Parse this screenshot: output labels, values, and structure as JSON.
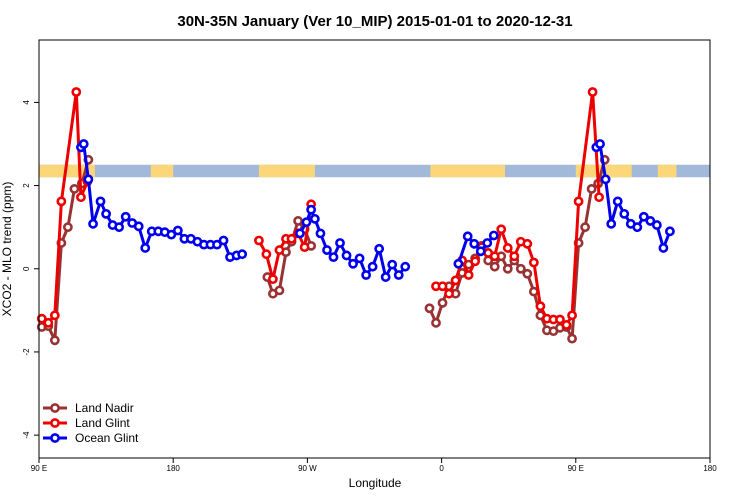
{
  "chart_data": {
    "type": "line",
    "title": "30N-35N January (Ver 10_MIP)   2015-01-01 to 2020-12-31",
    "xlabel": "Longitude",
    "ylabel": "XCO2 - MLO trend (ppm)",
    "xlim": [
      -90,
      270
    ],
    "ylim": [
      -4.55,
      5.5
    ],
    "x_ticks": [
      {
        "value": -90,
        "label": "90 E"
      },
      {
        "value": -18,
        "label": "180"
      },
      {
        "value": 54,
        "label": "90 W"
      },
      {
        "value": 126,
        "label": "0"
      },
      {
        "value": 198,
        "label": "90 E"
      },
      {
        "value": 270,
        "label": "180"
      }
    ],
    "y_ticks": [
      {
        "value": -4,
        "label": "-4"
      },
      {
        "value": -2,
        "label": "-2"
      },
      {
        "value": 0,
        "label": "0"
      },
      {
        "value": 2,
        "label": "2"
      },
      {
        "value": 4,
        "label": "4"
      }
    ],
    "grid": false,
    "legend_position": "bottom-left",
    "land_ocean_band": {
      "y_range": [
        2.2,
        2.5
      ],
      "land_color": "#FCD77A",
      "ocean_color": "#A3B9DA",
      "land_segments": [
        [
          -90,
          -60
        ],
        [
          -30,
          -18
        ],
        [
          28,
          58
        ],
        [
          120,
          160
        ],
        [
          198,
          228
        ],
        [
          242,
          252
        ]
      ]
    },
    "series": [
      {
        "name": "Land Nadir",
        "color": "#993333",
        "points": [
          [
            -88.5,
            -1.4
          ],
          [
            -85,
            -1.38
          ],
          [
            -81.5,
            -1.72
          ],
          [
            -78,
            0.62
          ],
          [
            -74.5,
            1.0
          ],
          [
            -71,
            1.92
          ],
          [
            -67,
            2.05
          ],
          [
            -63.5,
            2.62
          ],
          [
            32.5,
            -0.2
          ],
          [
            35.5,
            -0.6
          ],
          [
            39,
            -0.52
          ],
          [
            42.5,
            0.4
          ],
          [
            45.5,
            0.65
          ],
          [
            49,
            1.15
          ],
          [
            52.5,
            0.95
          ],
          [
            56,
            0.55
          ],
          [
            119.5,
            -0.95
          ],
          [
            123,
            -1.3
          ],
          [
            126.5,
            -0.82
          ],
          [
            130,
            -0.42
          ],
          [
            133.5,
            -0.6
          ],
          [
            137,
            -0.1
          ],
          [
            140.5,
            0.1
          ],
          [
            144,
            0.25
          ],
          [
            147.5,
            0.55
          ],
          [
            151,
            0.2
          ],
          [
            154.5,
            0.05
          ],
          [
            158,
            0.3
          ],
          [
            161.5,
            0.0
          ],
          [
            165,
            0.2
          ],
          [
            168.5,
            0.0
          ],
          [
            172,
            -0.12
          ],
          [
            175.5,
            -0.55
          ],
          [
            179,
            -1.12
          ],
          [
            182.5,
            -1.48
          ],
          [
            186,
            -1.5
          ],
          [
            189.5,
            -1.42
          ],
          [
            193,
            -1.4
          ],
          [
            196,
            -1.68
          ],
          [
            199.5,
            0.62
          ],
          [
            203,
            1.0
          ],
          [
            206.5,
            1.92
          ],
          [
            210,
            2.05
          ],
          [
            213.5,
            2.62
          ]
        ]
      },
      {
        "name": "Land Glint",
        "color": "#EE0000",
        "points": [
          [
            -88.5,
            -1.2
          ],
          [
            -85,
            -1.3
          ],
          [
            -81.5,
            -1.12
          ],
          [
            -78,
            1.62
          ],
          [
            -70,
            4.25
          ],
          [
            -67.5,
            1.72
          ],
          [
            -64,
            2.1
          ],
          [
            28,
            0.68
          ],
          [
            32,
            0.35
          ],
          [
            35.5,
            -0.25
          ],
          [
            39,
            0.45
          ],
          [
            42.5,
            0.72
          ],
          [
            45.5,
            0.72
          ],
          [
            49,
            0.85
          ],
          [
            52.5,
            0.52
          ],
          [
            56,
            1.55
          ],
          [
            123,
            -0.42
          ],
          [
            126.5,
            -0.42
          ],
          [
            130,
            -0.6
          ],
          [
            133.5,
            -0.28
          ],
          [
            137,
            0.2
          ],
          [
            140.5,
            -0.15
          ],
          [
            144,
            0.18
          ],
          [
            147.5,
            0.52
          ],
          [
            151,
            0.38
          ],
          [
            154.5,
            0.3
          ],
          [
            158,
            0.95
          ],
          [
            161.5,
            0.5
          ],
          [
            165,
            0.3
          ],
          [
            168.5,
            0.65
          ],
          [
            172,
            0.6
          ],
          [
            175.5,
            0.15
          ],
          [
            179,
            -0.9
          ],
          [
            182.5,
            -1.2
          ],
          [
            186,
            -1.22
          ],
          [
            189.5,
            -1.22
          ],
          [
            193,
            -1.35
          ],
          [
            196,
            -1.12
          ],
          [
            199.5,
            1.62
          ],
          [
            207,
            4.25
          ],
          [
            210.5,
            1.72
          ]
        ]
      },
      {
        "name": "Ocean Glint",
        "color": "#0000EE",
        "points": [
          [
            -67.5,
            2.92
          ],
          [
            -66,
            3.0
          ],
          [
            -63.5,
            2.15
          ],
          [
            -61,
            1.08
          ],
          [
            -57,
            1.62
          ],
          [
            -54,
            1.32
          ],
          [
            -50.5,
            1.05
          ],
          [
            -47,
            1.0
          ],
          [
            -43.5,
            1.25
          ],
          [
            -40,
            1.1
          ],
          [
            -36.5,
            1.02
          ],
          [
            -33,
            0.5
          ],
          [
            -29.5,
            0.9
          ],
          [
            -26,
            0.9
          ],
          [
            -22.5,
            0.88
          ],
          [
            -19,
            0.82
          ],
          [
            -15.5,
            0.92
          ],
          [
            -12,
            0.72
          ],
          [
            -8.5,
            0.72
          ],
          [
            -5,
            0.65
          ],
          [
            -1.5,
            0.58
          ],
          [
            2,
            0.58
          ],
          [
            5.5,
            0.58
          ],
          [
            9,
            0.68
          ],
          [
            12.5,
            0.28
          ],
          [
            16,
            0.32
          ],
          [
            19,
            0.35
          ],
          [
            50,
            0.85
          ],
          [
            53.5,
            1.12
          ],
          [
            56,
            1.42
          ],
          [
            58,
            1.2
          ],
          [
            61,
            0.85
          ],
          [
            64.5,
            0.45
          ],
          [
            68,
            0.28
          ],
          [
            71.5,
            0.62
          ],
          [
            75,
            0.32
          ],
          [
            78.5,
            0.12
          ],
          [
            82,
            0.25
          ],
          [
            85.5,
            -0.15
          ],
          [
            89,
            0.05
          ],
          [
            92.5,
            0.48
          ],
          [
            96,
            -0.2
          ],
          [
            99.5,
            0.1
          ],
          [
            103,
            -0.15
          ],
          [
            106.5,
            0.05
          ],
          [
            135,
            0.12
          ],
          [
            140,
            0.78
          ],
          [
            143.5,
            0.6
          ],
          [
            147,
            0.42
          ],
          [
            150.5,
            0.62
          ],
          [
            154,
            0.8
          ],
          [
            209,
            2.92
          ],
          [
            211,
            3.0
          ],
          [
            214,
            2.15
          ],
          [
            217,
            1.08
          ],
          [
            220.5,
            1.62
          ],
          [
            224,
            1.32
          ],
          [
            227.5,
            1.08
          ],
          [
            231,
            1.0
          ],
          [
            234.5,
            1.25
          ],
          [
            238,
            1.15
          ],
          [
            241.5,
            1.05
          ],
          [
            245,
            0.5
          ],
          [
            248.5,
            0.9
          ]
        ]
      }
    ]
  }
}
